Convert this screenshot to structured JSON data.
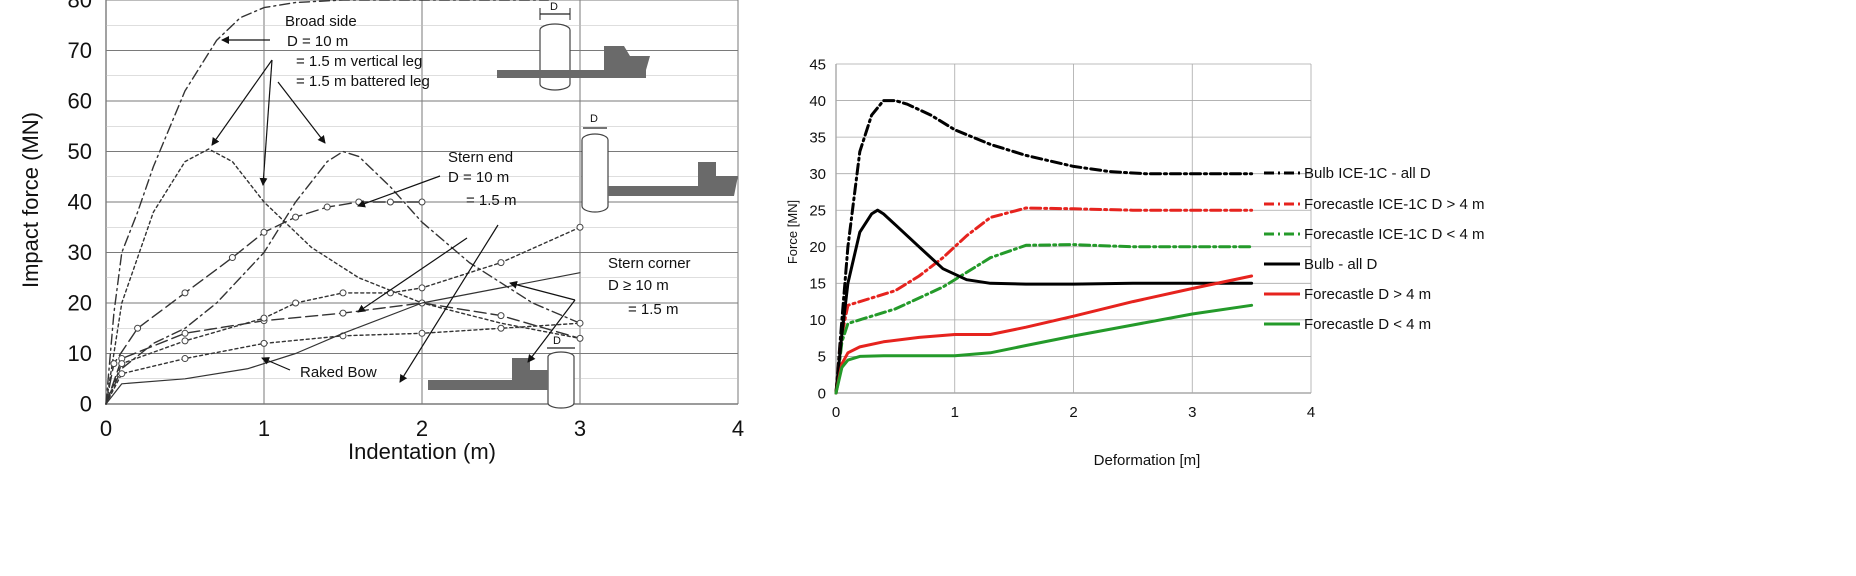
{
  "chart_data": [
    {
      "type": "line",
      "xlabel": "Indentation (m)",
      "ylabel": "Impact force (MN)",
      "xlim": [
        0,
        4
      ],
      "ylim": [
        0,
        80
      ],
      "x_ticks": [
        "0",
        "1",
        "2",
        "3",
        "4"
      ],
      "y_ticks": [
        "0",
        "10",
        "20",
        "30",
        "40",
        "50",
        "60",
        "70",
        "80"
      ],
      "grid": true,
      "annotations": {
        "broad_side_title": "Broad side",
        "broad_side_d": "D = 10  m",
        "broad_side_vertical": "= 1.5 m vertical leg",
        "broad_side_battered": "= 1.5 m battered leg",
        "stern_end_title": "Stern end",
        "stern_end_d": "D = 10  m",
        "stern_end_small": "= 1.5 m",
        "stern_corner_title": "Stern corner",
        "stern_corner_d": "D ≥ 10 m",
        "stern_corner_small": "= 1.5 m",
        "raked_bow": "Raked Bow",
        "diameter_mark": "D"
      },
      "series": [
        {
          "id": "broad_side_10m",
          "style": "dash-dot",
          "x": [
            0,
            0.05,
            0.1,
            0.2,
            0.3,
            0.5,
            0.7,
            0.85,
            1.0,
            1.2,
            1.5,
            2.0,
            2.8
          ],
          "y": [
            0,
            18,
            30,
            38,
            47,
            62,
            72,
            76.5,
            78.5,
            79.5,
            80,
            80,
            80
          ]
        },
        {
          "id": "broad_side_vertical_leg",
          "style": "dotted",
          "x": [
            0,
            0.1,
            0.3,
            0.5,
            0.65,
            0.8,
            1.0,
            1.3,
            1.6,
            2.0,
            2.5,
            3.0
          ],
          "y": [
            0,
            20,
            38,
            48,
            50.5,
            48,
            40,
            31,
            25,
            20,
            16,
            13
          ]
        },
        {
          "id": "broad_side_battered_leg",
          "style": "dash-dot",
          "x": [
            0,
            0.1,
            0.3,
            0.5,
            0.7,
            1.0,
            1.2,
            1.4,
            1.5,
            1.6,
            1.8,
            2.0,
            2.3,
            2.7,
            3.0
          ],
          "y": [
            0,
            7,
            12,
            15,
            20,
            30,
            40,
            48,
            50,
            49,
            43,
            36,
            28,
            20,
            16
          ]
        },
        {
          "id": "stern_end_10m",
          "style": "long-dash",
          "x": [
            0,
            0.05,
            0.2,
            0.5,
            0.8,
            1.0,
            1.2,
            1.4,
            1.6,
            1.8,
            2.0
          ],
          "y": [
            0,
            8,
            15,
            22,
            29,
            34,
            37,
            39,
            40,
            40,
            40
          ]
        },
        {
          "id": "stern_end_1_5m",
          "style": "long-dash",
          "x": [
            0,
            0.1,
            0.5,
            1.0,
            1.5,
            2.0,
            2.5,
            3.0
          ],
          "y": [
            0,
            9,
            14,
            16.5,
            18,
            20,
            17.5,
            13
          ]
        },
        {
          "id": "stern_corner_10m",
          "style": "dotted",
          "x": [
            0,
            0.1,
            0.5,
            1.0,
            1.2,
            1.5,
            1.8,
            2.0,
            2.5,
            3.0
          ],
          "y": [
            0,
            8,
            12.5,
            17,
            20,
            22,
            22,
            23,
            28,
            35
          ]
        },
        {
          "id": "stern_corner_1_5m",
          "style": "dotted",
          "x": [
            0,
            0.1,
            0.5,
            1.0,
            1.5,
            2.0,
            2.5,
            3.0
          ],
          "y": [
            0,
            6,
            9,
            12,
            13.5,
            14,
            15,
            16
          ]
        },
        {
          "id": "raked_bow",
          "style": "solid-thin",
          "x": [
            0,
            0.1,
            0.5,
            0.9,
            1.2,
            1.5,
            2.0,
            2.5,
            3.0
          ],
          "y": [
            0,
            4,
            5,
            7,
            10,
            14,
            20,
            23,
            26
          ]
        }
      ]
    },
    {
      "type": "line",
      "xlabel": "Deformation [m]",
      "ylabel": "Force [MN]",
      "xlim": [
        0,
        4
      ],
      "ylim": [
        0,
        45
      ],
      "x_ticks": [
        "0",
        "1",
        "2",
        "3",
        "4"
      ],
      "y_ticks": [
        "0",
        "5",
        "10",
        "15",
        "20",
        "25",
        "30",
        "35",
        "40",
        "45"
      ],
      "grid": true,
      "legend_position": "right",
      "series": [
        {
          "name": "Bulb ICE-1C - all D",
          "color": "#000000",
          "style": "dash-dot",
          "x": [
            0,
            0.05,
            0.1,
            0.2,
            0.3,
            0.4,
            0.5,
            0.6,
            0.8,
            1.0,
            1.3,
            1.6,
            2.0,
            2.3,
            2.6,
            3.0,
            3.5
          ],
          "y": [
            0,
            10,
            20,
            33,
            38,
            40,
            40,
            39.5,
            38,
            36,
            34,
            32.5,
            31,
            30.3,
            30,
            30,
            30
          ]
        },
        {
          "name": "Forecastle  ICE-1C  D > 4 m",
          "color": "#e6231e",
          "style": "dash-dot",
          "x": [
            0,
            0.05,
            0.1,
            0.3,
            0.5,
            0.7,
            0.9,
            1.1,
            1.3,
            1.6,
            2.0,
            2.5,
            3.0,
            3.5
          ],
          "y": [
            0,
            8,
            12,
            13,
            14,
            16,
            18.5,
            21.5,
            24,
            25.3,
            25.2,
            25,
            25,
            25
          ]
        },
        {
          "name": "Forecastle  ICE-1C  D < 4 m",
          "color": "#249a2a",
          "style": "dash-dot",
          "x": [
            0,
            0.05,
            0.1,
            0.3,
            0.5,
            0.7,
            0.9,
            1.1,
            1.3,
            1.6,
            2.0,
            2.5,
            3.0,
            3.5
          ],
          "y": [
            0,
            7,
            9.5,
            10.5,
            11.5,
            13,
            14.5,
            16.5,
            18.5,
            20.2,
            20.3,
            20,
            20,
            20
          ]
        },
        {
          "name": "Bulb - all D",
          "color": "#000000",
          "style": "solid",
          "x": [
            0,
            0.05,
            0.1,
            0.2,
            0.3,
            0.35,
            0.4,
            0.5,
            0.7,
            0.9,
            1.1,
            1.3,
            1.6,
            2.0,
            2.5,
            3.0,
            3.5
          ],
          "y": [
            0,
            8,
            15,
            22,
            24.5,
            25,
            24.5,
            23,
            20,
            17,
            15.5,
            15,
            14.9,
            14.9,
            15,
            15,
            15
          ]
        },
        {
          "name": "Forecastle D > 4 m",
          "color": "#e6231e",
          "style": "solid",
          "x": [
            0,
            0.05,
            0.1,
            0.2,
            0.4,
            0.7,
            1.0,
            1.3,
            1.6,
            2.0,
            2.5,
            3.0,
            3.5
          ],
          "y": [
            0,
            4,
            5.5,
            6.3,
            7,
            7.6,
            8,
            8,
            9,
            10.5,
            12.5,
            14.3,
            16
          ]
        },
        {
          "name": "Forecastle D < 4 m",
          "color": "#249a2a",
          "style": "solid",
          "x": [
            0,
            0.05,
            0.1,
            0.2,
            0.4,
            0.7,
            1.0,
            1.3,
            1.6,
            2.0,
            2.5,
            3.0,
            3.5
          ],
          "y": [
            0,
            3.5,
            4.5,
            5,
            5.1,
            5.1,
            5.1,
            5.5,
            6.5,
            7.8,
            9.3,
            10.8,
            12
          ]
        }
      ]
    }
  ]
}
